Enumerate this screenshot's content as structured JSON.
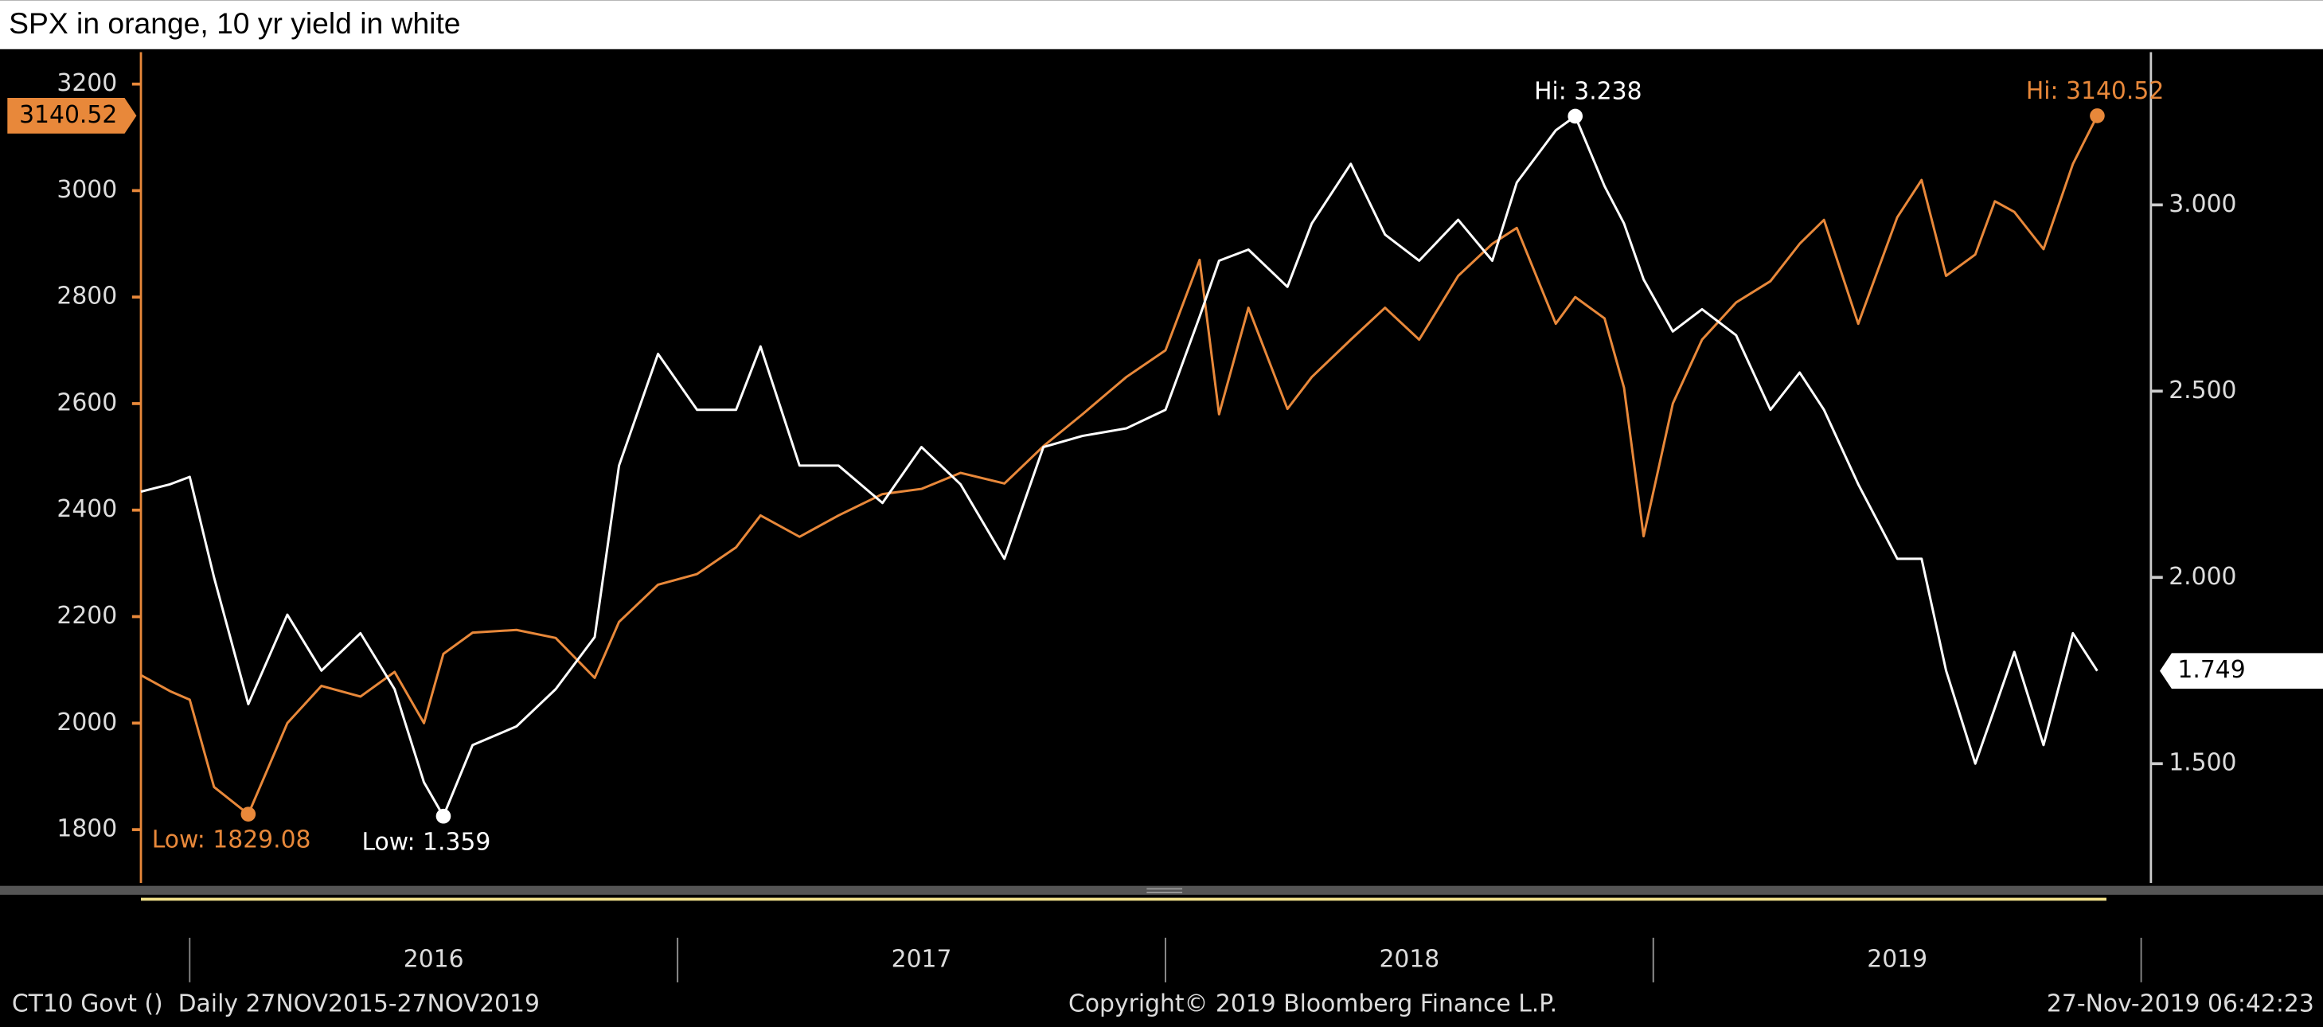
{
  "chart_data": {
    "type": "line",
    "title": "SPX in orange, 10 yr yield in white",
    "x": [
      2015.9,
      2015.96,
      2016.0,
      2016.05,
      2016.12,
      2016.2,
      2016.27,
      2016.35,
      2016.42,
      2016.48,
      2016.52,
      2016.58,
      2016.67,
      2016.75,
      2016.83,
      2016.88,
      2016.96,
      2017.04,
      2017.12,
      2017.17,
      2017.25,
      2017.33,
      2017.42,
      2017.5,
      2017.58,
      2017.67,
      2017.75,
      2017.83,
      2017.92,
      2018.0,
      2018.07,
      2018.11,
      2018.17,
      2018.25,
      2018.3,
      2018.38,
      2018.45,
      2018.52,
      2018.6,
      2018.67,
      2018.72,
      2018.8,
      2018.84,
      2018.9,
      2018.94,
      2018.98,
      2019.04,
      2019.1,
      2019.17,
      2019.24,
      2019.3,
      2019.35,
      2019.42,
      2019.5,
      2019.55,
      2019.6,
      2019.66,
      2019.7,
      2019.74,
      2019.8,
      2019.86,
      2019.91
    ],
    "series": [
      {
        "color": "#e8883a",
        "axis": "y",
        "high_label": "Hi: 3140.52",
        "low_label": "Low: 1829.08",
        "values": [
          2090,
          2060,
          2044,
          1880,
          1829.08,
          2000,
          2070,
          2050,
          2096,
          2000,
          2130,
          2170,
          2175,
          2160,
          2085,
          2190,
          2260,
          2280,
          2330,
          2390,
          2350,
          2390,
          2430,
          2440,
          2470,
          2450,
          2520,
          2580,
          2650,
          2700,
          2870,
          2580,
          2780,
          2590,
          2650,
          2720,
          2780,
          2720,
          2840,
          2900,
          2930,
          2750,
          2800,
          2760,
          2630,
          2351,
          2600,
          2720,
          2790,
          2830,
          2900,
          2945,
          2750,
          2950,
          3020,
          2840,
          2880,
          2980,
          2960,
          2890,
          3050,
          3140.52
        ]
      },
      {
        "color": "#ffffff",
        "axis": "y2",
        "high_label": "Hi: 3.238",
        "low_label": "Low: 1.359",
        "values": [
          2.23,
          2.25,
          2.27,
          2.0,
          1.66,
          1.9,
          1.75,
          1.85,
          1.7,
          1.45,
          1.359,
          1.55,
          1.6,
          1.7,
          1.84,
          2.3,
          2.6,
          2.45,
          2.45,
          2.62,
          2.3,
          2.3,
          2.2,
          2.35,
          2.25,
          2.05,
          2.35,
          2.38,
          2.4,
          2.45,
          2.7,
          2.85,
          2.88,
          2.78,
          2.95,
          3.11,
          2.92,
          2.85,
          2.96,
          2.85,
          3.06,
          3.2,
          3.238,
          3.05,
          2.95,
          2.8,
          2.66,
          2.72,
          2.65,
          2.45,
          2.55,
          2.45,
          2.25,
          2.05,
          2.05,
          1.75,
          1.5,
          1.65,
          1.8,
          1.55,
          1.85,
          1.749
        ]
      }
    ],
    "xlim": [
      2015.9,
      2020.02
    ],
    "xticks": [
      {
        "value": 2016.5,
        "label": "2016"
      },
      {
        "value": 2017.5,
        "label": "2017"
      },
      {
        "value": 2018.5,
        "label": "2018"
      },
      {
        "value": 2019.5,
        "label": "2019"
      }
    ],
    "ylim": [
      1700,
      3260
    ],
    "yticks": [
      1800,
      2000,
      2200,
      2400,
      2600,
      2800,
      3000,
      3200
    ],
    "y2lim": [
      1.18,
      3.41
    ],
    "y2ticks": [
      {
        "value": 1.5,
        "label": "1.500"
      },
      {
        "value": 2,
        "label": "2.000"
      },
      {
        "value": 2.5,
        "label": "2.500"
      },
      {
        "value": 3,
        "label": "3.000"
      }
    ],
    "footer": {
      "left": "CT10 Govt ()  Daily 27NOV2015-27NOV2019",
      "center": "Copyright© 2019 Bloomberg Finance L.P.",
      "right": "27-Nov-2019 06:42:23"
    }
  }
}
